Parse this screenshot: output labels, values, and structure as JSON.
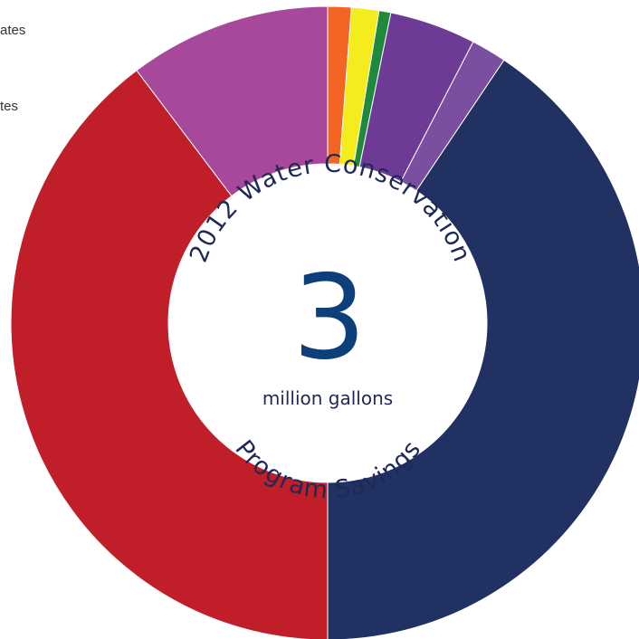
{
  "chart_data": {
    "type": "pie",
    "title_top": "2012 Water Conservation",
    "title_bottom": "Program Savings",
    "center_value": "3",
    "center_unit": "million gallons",
    "legend_fragments": [
      "ates",
      "tes"
    ],
    "slices": [
      {
        "value": 1.2,
        "color": "#f26522"
      },
      {
        "value": 1.4,
        "color": "#f4ec1d"
      },
      {
        "value": 0.6,
        "color": "#1f8a3c"
      },
      {
        "value": 4.4,
        "color": "#6d3a96"
      },
      {
        "value": 1.8,
        "color": "#7b4fa0"
      },
      {
        "value": 40.6,
        "color": "#213262"
      },
      {
        "value": 39.7,
        "color": "#c01f2a"
      },
      {
        "value": 10.3,
        "color": "#a7489a"
      }
    ]
  }
}
